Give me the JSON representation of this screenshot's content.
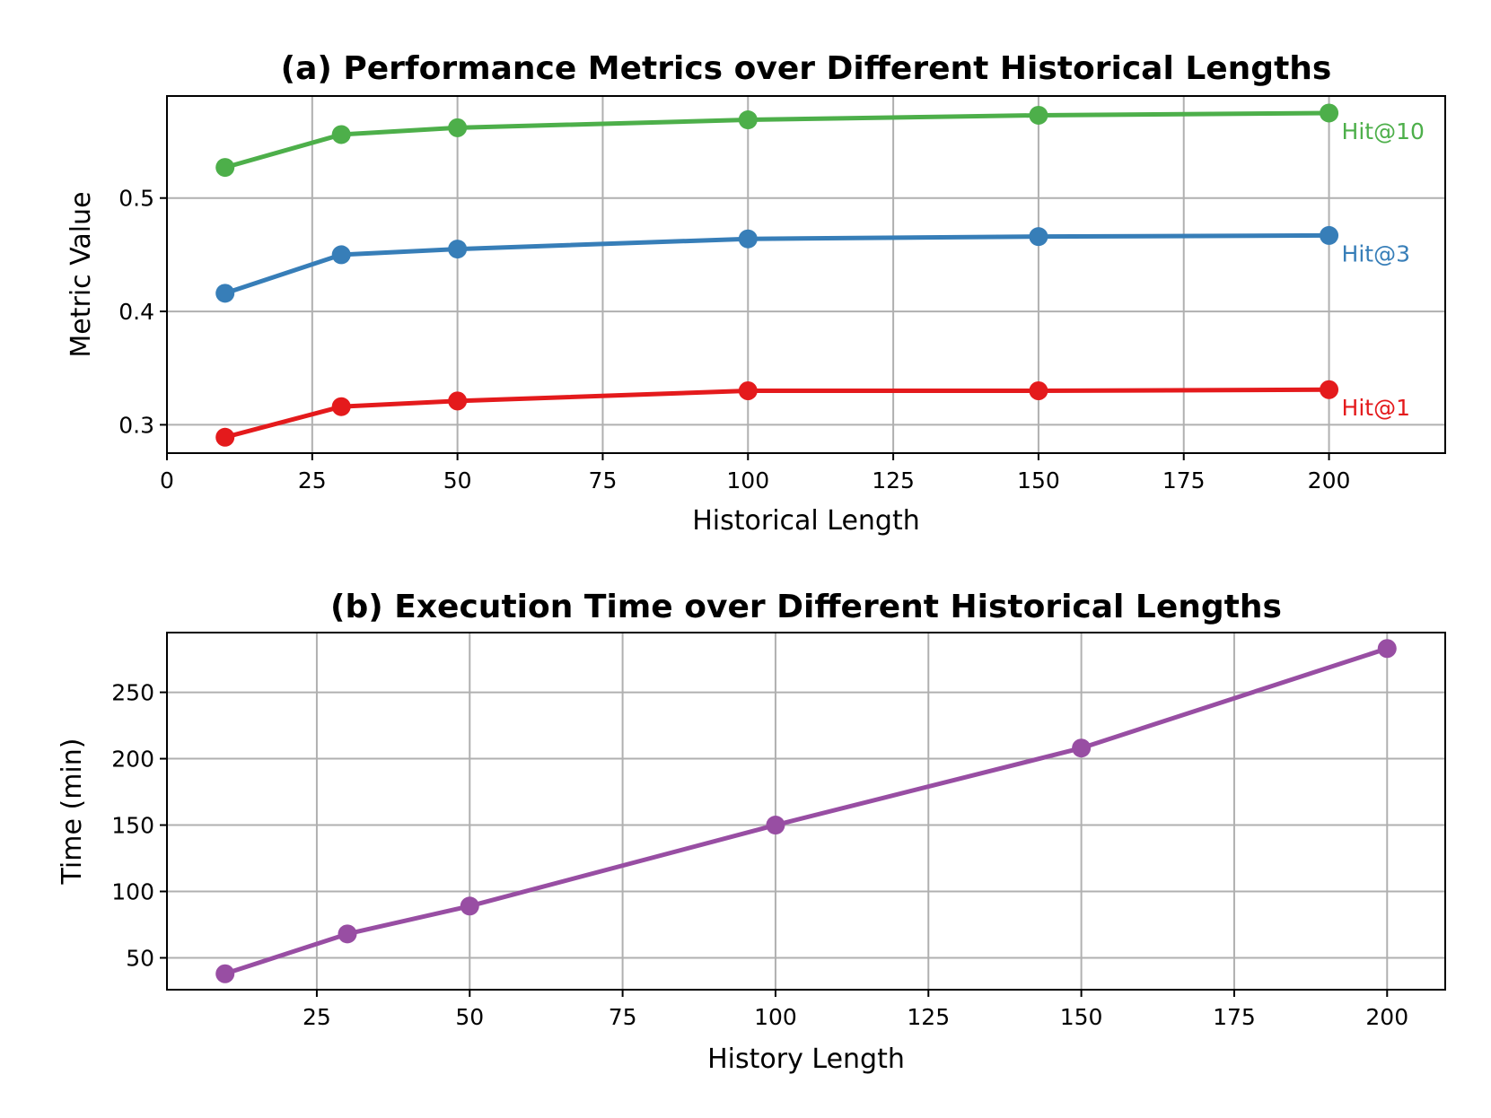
{
  "chart_data": [
    {
      "type": "line",
      "title": "(a) Performance Metrics over Different Historical Lengths",
      "xlabel": "Historical Length",
      "ylabel": "Metric Value",
      "xlim": [
        0,
        220
      ],
      "ylim": [
        0.275,
        0.59
      ],
      "xticks": [
        0,
        25,
        50,
        75,
        100,
        125,
        150,
        175,
        200
      ],
      "yticks": [
        0.3,
        0.4,
        0.5
      ],
      "ytick_labels": [
        "0.3",
        "0.4",
        "0.5"
      ],
      "grid": true,
      "legend": "inline labels at right end of lines",
      "x": [
        10,
        30,
        50,
        100,
        150,
        200
      ],
      "series": [
        {
          "name": "Hit@1",
          "color": "#e41a1c",
          "values": [
            0.289,
            0.316,
            0.321,
            0.33,
            0.33,
            0.331
          ]
        },
        {
          "name": "Hit@3",
          "color": "#377eb8",
          "values": [
            0.416,
            0.45,
            0.455,
            0.464,
            0.466,
            0.467
          ]
        },
        {
          "name": "Hit@10",
          "color": "#4daf4a",
          "values": [
            0.527,
            0.556,
            0.562,
            0.569,
            0.573,
            0.575
          ]
        }
      ]
    },
    {
      "type": "line",
      "title": "(b) Execution Time over Different Historical Lengths",
      "xlabel": "History Length",
      "ylabel": "Time (min)",
      "xlim": [
        0.5,
        209.5
      ],
      "ylim": [
        26,
        295
      ],
      "xticks": [
        25,
        50,
        75,
        100,
        125,
        150,
        175,
        200
      ],
      "yticks": [
        50,
        100,
        150,
        200,
        250
      ],
      "ytick_labels": [
        "50",
        "100",
        "150",
        "200",
        "250"
      ],
      "grid": true,
      "legend": "none",
      "x": [
        10,
        30,
        50,
        100,
        150,
        200
      ],
      "series": [
        {
          "color": "#984ea3",
          "values": [
            38,
            68,
            89,
            150,
            208,
            283
          ]
        }
      ]
    }
  ]
}
